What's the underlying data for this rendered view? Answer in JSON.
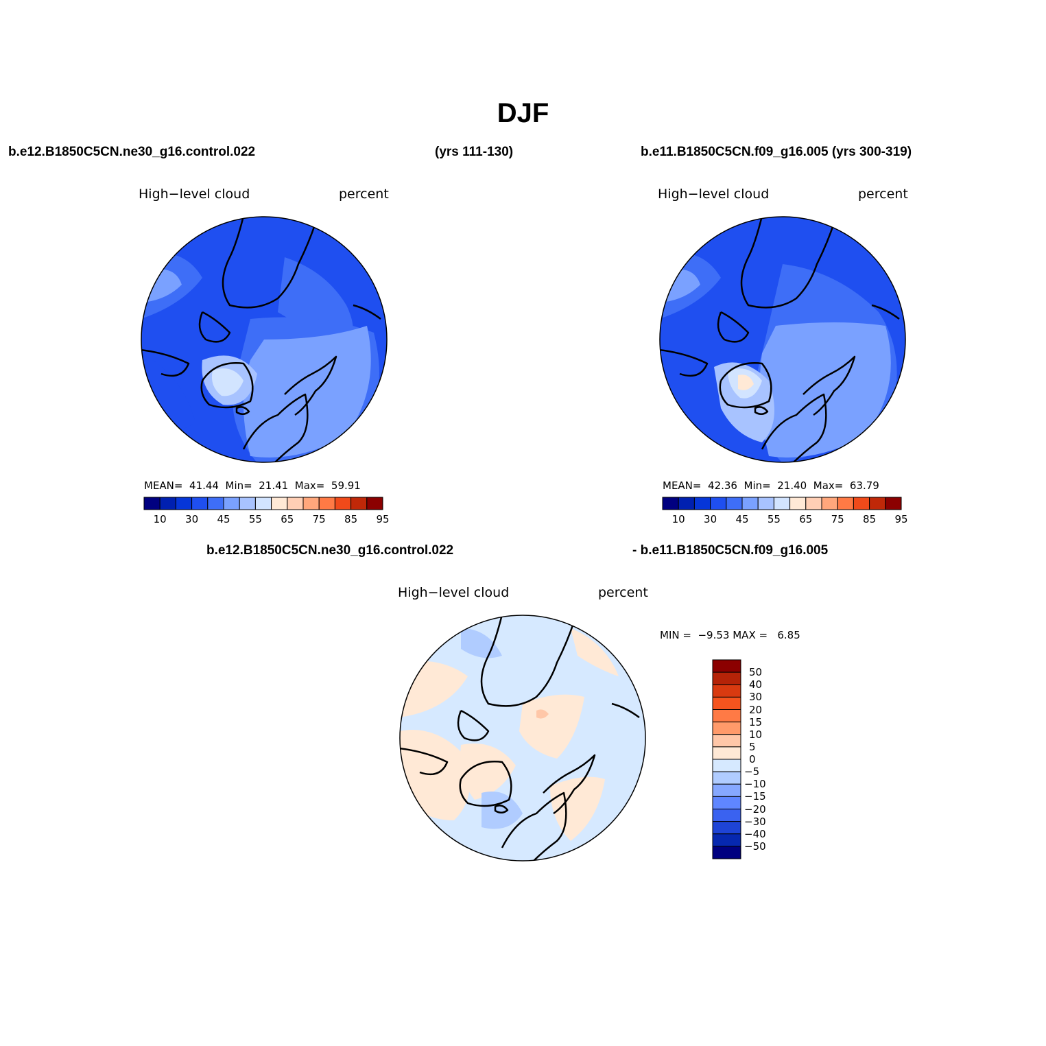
{
  "title": "DJF",
  "header": {
    "left_case": "b.e12.B1850C5CN.ne30_g16.control.022",
    "left_years": "(yrs 111-130)",
    "right_case": "b.e11.B1850C5CN.f09_g16.005 (yrs 300-319)",
    "diff_case_a": "b.e12.B1850C5CN.ne30_g16.control.022",
    "diff_case_b": "- b.e11.B1850C5CN.f09_g16.005"
  },
  "panels": [
    {
      "variable": "High−level cloud",
      "units": "percent",
      "mean_label": "MEAN=",
      "mean": "41.44",
      "min_label": "Min=",
      "min": "21.41",
      "max_label": "Max=",
      "max": "59.91"
    },
    {
      "variable": "High−level cloud",
      "units": "percent",
      "mean_label": "MEAN=",
      "mean": "42.36",
      "min_label": "Min=",
      "min": "21.40",
      "max_label": "Max=",
      "max": "63.79"
    },
    {
      "variable": "High−level cloud",
      "units": "percent",
      "min_label": "MIN =",
      "min": "−9.53",
      "max_label": "MAX =",
      "max": "6.85"
    }
  ],
  "abs_colorbar": {
    "colors": [
      "#000080",
      "#0020b0",
      "#0636d8",
      "#1f4ff0",
      "#3e6ef7",
      "#7aa1ff",
      "#a8c3ff",
      "#d2e4ff",
      "#ffe9d6",
      "#ffcfb5",
      "#ffa77c",
      "#ff7a45",
      "#f04a1a",
      "#c02808",
      "#8b0000"
    ],
    "labels": [
      "10",
      "30",
      "45",
      "55",
      "65",
      "75",
      "85",
      "95"
    ]
  },
  "diff_colorbar": {
    "colors_top_to_bottom": [
      "#8b0000",
      "#b52308",
      "#d93a10",
      "#f5541e",
      "#ff7a45",
      "#ff9a6a",
      "#ffc7a8",
      "#ffe9d6",
      "#d6e9ff",
      "#b0ccff",
      "#86a8ff",
      "#5f86ff",
      "#3a62f0",
      "#1e44d6",
      "#0628b0",
      "#000080"
    ],
    "labels": [
      "50",
      "40",
      "30",
      "20",
      "15",
      "10",
      "5",
      "0",
      "−5",
      "−10",
      "−15",
      "−20",
      "−30",
      "−40",
      "−50"
    ]
  },
  "maps": {
    "control_base": "#1f4ff0",
    "case2_base": "#1f4ff0",
    "diff_base": "#d6e9ff",
    "coastline": "#000000"
  }
}
